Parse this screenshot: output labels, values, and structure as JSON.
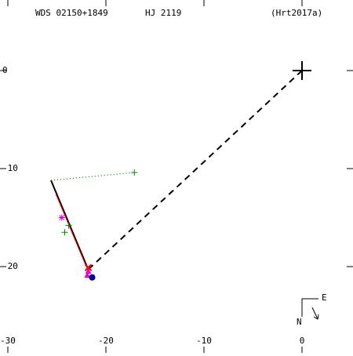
{
  "chart_data": {
    "type": "orbit",
    "title": "WDS 02150+1849",
    "subtitle": "HJ 2119",
    "reference": "(Hrt2017a)",
    "compass": {
      "north": "N",
      "east": "E"
    },
    "xlim": [
      -30.8,
      5.2
    ],
    "ylim": [
      -28.8,
      7.2
    ],
    "xticks": [
      -30,
      -20,
      -10,
      0
    ],
    "yticks": [
      0,
      -10,
      -20
    ],
    "lines": [
      {
        "color": "#000000",
        "style": "dashed",
        "x": [
          0,
          -21.8
        ],
        "y": [
          0,
          -20.3
        ]
      },
      {
        "color": "#000000",
        "style": "solid",
        "x": [
          -25.6,
          -21.8
        ],
        "y": [
          -11.2,
          -20.3
        ]
      },
      {
        "color": "#ff0000",
        "style": "thin",
        "x": [
          -25.1,
          -22.0
        ],
        "y": [
          -12.6,
          -20.0
        ]
      },
      {
        "color": "#008800",
        "style": "dotted",
        "x": [
          -25.6,
          -17.1
        ],
        "y": [
          -11.2,
          -10.4
        ]
      }
    ],
    "series": [
      {
        "color": "#000000",
        "marker": "bigplus",
        "x": [
          0
        ],
        "y": [
          0
        ]
      },
      {
        "color": "#008800",
        "marker": "plus",
        "x": [
          -17.1,
          -24.2,
          -23.8
        ],
        "y": [
          -10.4,
          -16.5,
          -15.8
        ]
      },
      {
        "color": "#dd00dd",
        "marker": "asterisk",
        "x": [
          -24.5
        ],
        "y": [
          -15.0
        ]
      },
      {
        "color": "#dd00dd",
        "marker": "triangle",
        "x": [
          -21.8,
          -21.9
        ],
        "y": [
          -20.5,
          -20.9
        ]
      },
      {
        "color": "#ff0000",
        "marker": "cross",
        "x": [
          -21.8
        ],
        "y": [
          -20.1
        ]
      },
      {
        "color": "#0000cc",
        "marker": "circle",
        "x": [
          -21.4
        ],
        "y": [
          -21.1
        ]
      }
    ]
  }
}
